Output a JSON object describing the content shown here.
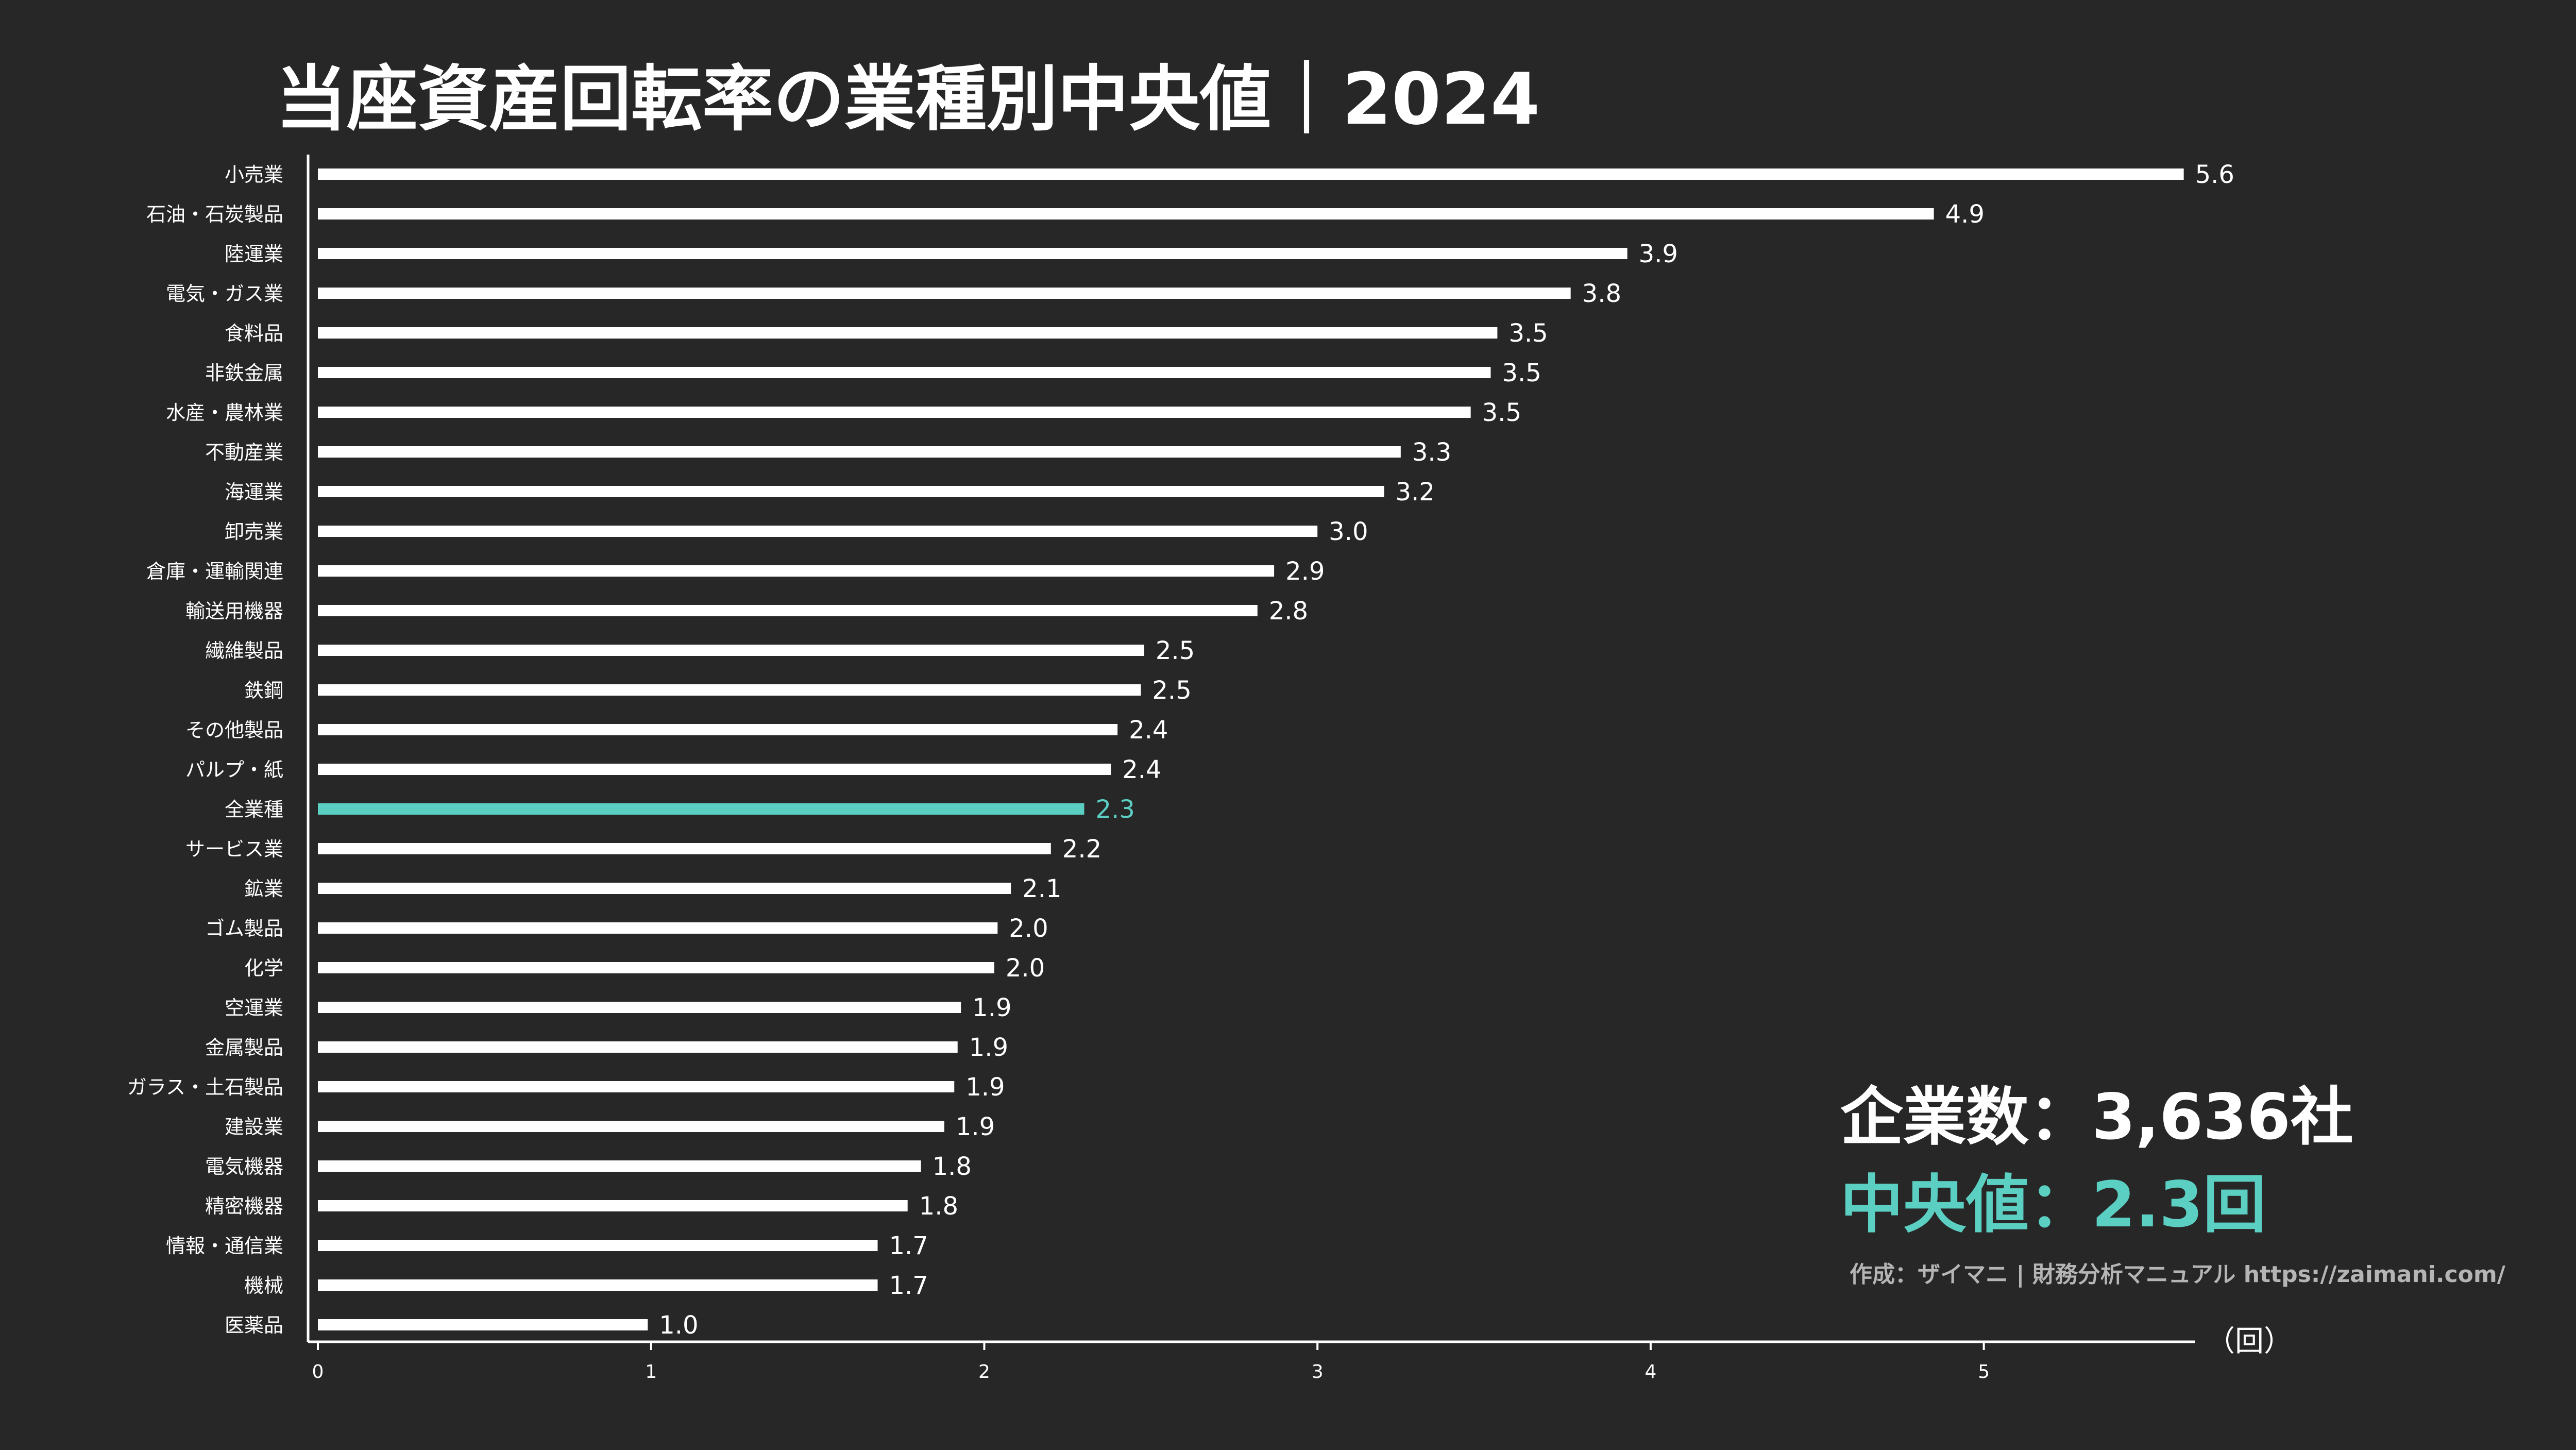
{
  "title": "当座資産回転率の業種別中央値｜2024",
  "summary": {
    "company_count_text": "企業数：3,636社",
    "median_text": "中央値：2.3回"
  },
  "credit": "作成：ザイマニ | 財務分析マニュアル https://zaimani.com/",
  "colors": {
    "background": "#272727",
    "bar": "#ffffff",
    "highlight": "#5ccfc3",
    "text": "#ffffff"
  },
  "chart_data": {
    "type": "bar",
    "orientation": "horizontal",
    "title": "当座資産回転率の業種別中央値｜2024",
    "xlabel": "（回）",
    "ylabel": "",
    "xlim": [
      0,
      5.65
    ],
    "xticks": [
      0,
      1,
      2,
      3,
      4,
      5
    ],
    "highlight_category": "全業種",
    "categories": [
      "小売業",
      "石油・石炭製品",
      "陸運業",
      "電気・ガス業",
      "食料品",
      "非鉄金属",
      "水産・農林業",
      "不動産業",
      "海運業",
      "卸売業",
      "倉庫・運輸関連",
      "輸送用機器",
      "繊維製品",
      "鉄鋼",
      "その他製品",
      "パルプ・紙",
      "全業種",
      "サービス業",
      "鉱業",
      "ゴム製品",
      "化学",
      "空運業",
      "金属製品",
      "ガラス・土石製品",
      "建設業",
      "電気機器",
      "精密機器",
      "情報・通信業",
      "機械",
      "医薬品"
    ],
    "values": [
      5.6,
      4.85,
      3.93,
      3.76,
      3.54,
      3.52,
      3.46,
      3.25,
      3.2,
      3.0,
      2.87,
      2.82,
      2.48,
      2.47,
      2.4,
      2.38,
      2.3,
      2.2,
      2.08,
      2.04,
      2.03,
      1.93,
      1.92,
      1.91,
      1.88,
      1.81,
      1.77,
      1.68,
      1.68,
      0.99
    ],
    "value_labels": [
      "5.6",
      "4.9",
      "3.9",
      "3.8",
      "3.5",
      "3.5",
      "3.5",
      "3.3",
      "3.2",
      "3.0",
      "2.9",
      "2.8",
      "2.5",
      "2.5",
      "2.4",
      "2.4",
      "2.3",
      "2.2",
      "2.1",
      "2.0",
      "2.0",
      "1.9",
      "1.9",
      "1.9",
      "1.9",
      "1.8",
      "1.8",
      "1.7",
      "1.7",
      "1.0"
    ]
  }
}
